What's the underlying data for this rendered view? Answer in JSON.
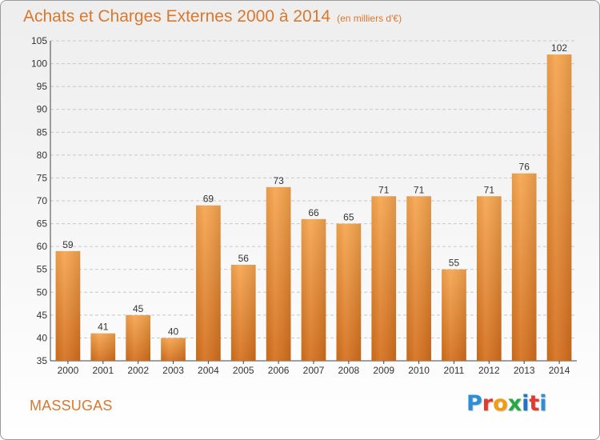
{
  "colors": {
    "accent": "#d9782d",
    "bar_top": "#f6a54e",
    "bar_bottom": "#d46f1c",
    "grid": "#c8c8c8",
    "text": "#333333"
  },
  "header": {
    "title": "Achats et Charges Externes 2000 à 2014",
    "subtitle": "(en milliers d'€)"
  },
  "footer": {
    "commune": "MASSUGAS",
    "brand": "Proxiti",
    "brand_colors": [
      "#2a8fd6",
      "#e23a2e",
      "#f39c12",
      "#27a844",
      "#1f73c9",
      "#e23a2e",
      "#2a8fd6"
    ]
  },
  "chart_data": {
    "type": "bar",
    "categories": [
      "2000",
      "2001",
      "2002",
      "2003",
      "2004",
      "2005",
      "2006",
      "2007",
      "2008",
      "2009",
      "2010",
      "2011",
      "2012",
      "2013",
      "2014"
    ],
    "values": [
      59,
      41,
      45,
      40,
      69,
      56,
      73,
      66,
      65,
      71,
      71,
      55,
      71,
      76,
      102
    ],
    "data_labels": [
      "59",
      "41",
      "45",
      "40",
      "69",
      "56",
      "73",
      "66",
      "65",
      "71",
      "71",
      "55",
      "71",
      "76",
      "102"
    ],
    "title": "Achats et Charges Externes 2000 à 2014",
    "subtitle": "(en milliers d'€)",
    "ylim": [
      35,
      105
    ],
    "yticks": [
      35,
      40,
      45,
      50,
      55,
      60,
      65,
      70,
      75,
      80,
      85,
      90,
      95,
      100,
      105
    ],
    "grid": true,
    "legend": "none"
  }
}
